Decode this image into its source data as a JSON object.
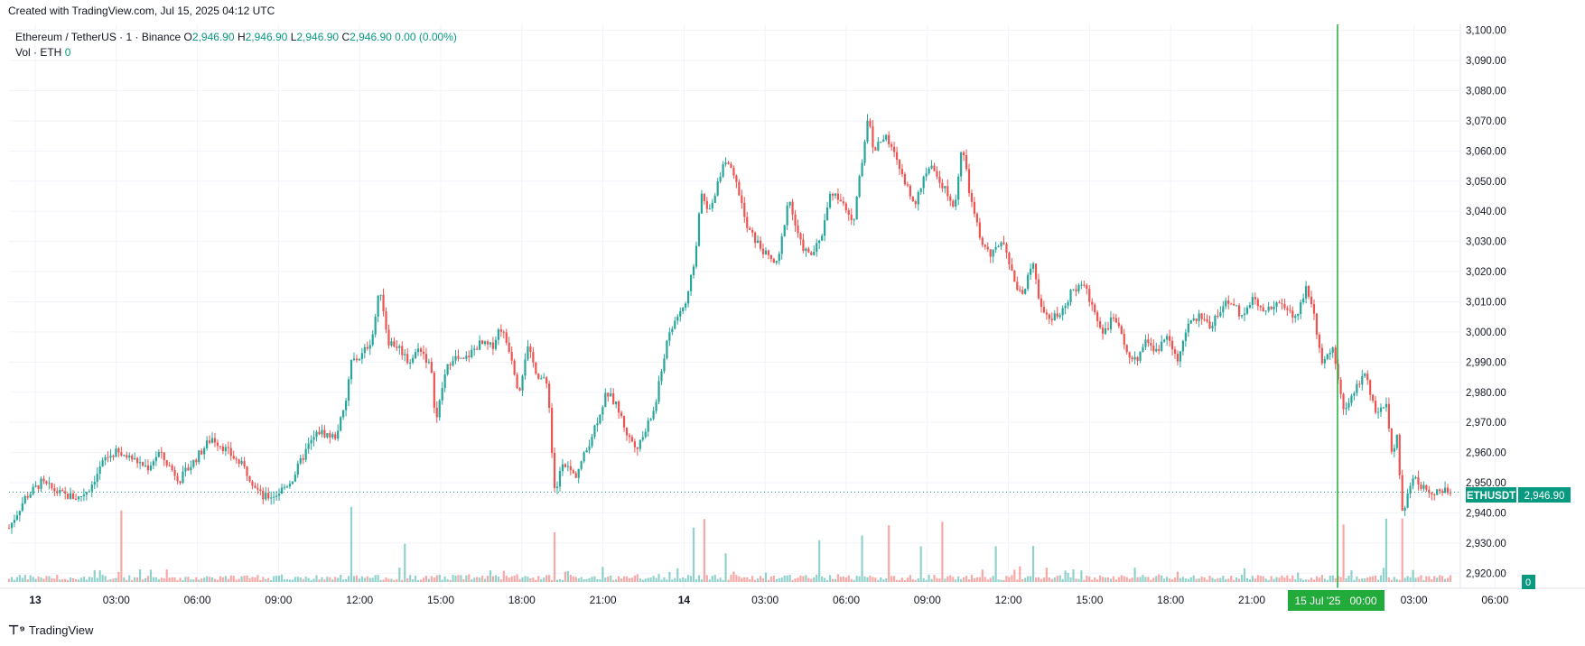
{
  "header": {
    "created": "Created with TradingView.com, Jul 15, 2025 04:12 UTC"
  },
  "legend": {
    "symbol": "Ethereum / TetherUS · 1 · Binance",
    "o_label": "O",
    "o_value": "2,946.90",
    "h_label": "H",
    "h_value": "2,946.90",
    "l_label": "L",
    "l_value": "2,946.90",
    "c_label": "C",
    "c_value": "2,946.90",
    "change": "0.00 (0.00%)",
    "vol_label": "Vol · ETH",
    "vol_value": "0"
  },
  "price_tag": {
    "symbol": "ETHUSDT",
    "price": "2,946.90"
  },
  "volume_tag": "0",
  "crosshair_label": "15 Jul '25   00:00",
  "footer": {
    "brand": "TradingView"
  },
  "colors": {
    "up": "#26a69a",
    "down": "#ef5350",
    "tag": "#089981",
    "crosshair": "#22ab3b",
    "grid": "#f0f3fa"
  },
  "chart_data": {
    "type": "candlestick",
    "symbol": "ETHUSDT",
    "interval": "1 minute",
    "y_axis": {
      "range": [
        2915,
        3102
      ],
      "ticks": [
        "3,100.00",
        "3,090.00",
        "3,080.00",
        "3,070.00",
        "3,060.00",
        "3,050.00",
        "3,040.00",
        "3,030.00",
        "3,020.00",
        "3,010.00",
        "3,000.00",
        "2,990.00",
        "2,980.00",
        "2,970.00",
        "2,960.00",
        "2,950.00",
        "2,940.00",
        "2,930.00",
        "2,920.00"
      ]
    },
    "x_axis": {
      "ticks": [
        "13",
        "03:00",
        "06:00",
        "09:00",
        "12:00",
        "15:00",
        "18:00",
        "21:00",
        "14",
        "03:00",
        "06:00",
        "09:00",
        "12:00",
        "15:00",
        "18:00",
        "21:00",
        "15 Jul '25",
        "03:00",
        "06:00"
      ]
    },
    "last_price": 2946.9,
    "price_path": [
      [
        0,
        2935
      ],
      [
        6,
        2945
      ],
      [
        12,
        2950
      ],
      [
        20,
        2946
      ],
      [
        26,
        2945
      ],
      [
        30,
        2948
      ],
      [
        36,
        2958
      ],
      [
        40,
        2960
      ],
      [
        46,
        2958
      ],
      [
        52,
        2955
      ],
      [
        56,
        2960
      ],
      [
        64,
        2951
      ],
      [
        70,
        2958
      ],
      [
        76,
        2965
      ],
      [
        80,
        2962
      ],
      [
        88,
        2955
      ],
      [
        95,
        2945
      ],
      [
        100,
        2946
      ],
      [
        106,
        2951
      ],
      [
        112,
        2962
      ],
      [
        116,
        2967
      ],
      [
        122,
        2965
      ],
      [
        126,
        2975
      ],
      [
        128,
        2990
      ],
      [
        132,
        2992
      ],
      [
        136,
        2998
      ],
      [
        139,
        3015
      ],
      [
        142,
        2997
      ],
      [
        146,
        2995
      ],
      [
        150,
        2990
      ],
      [
        154,
        2995
      ],
      [
        158,
        2988
      ],
      [
        160,
        2970
      ],
      [
        163,
        2985
      ],
      [
        166,
        2992
      ],
      [
        170,
        2990
      ],
      [
        176,
        2996
      ],
      [
        181,
        2995
      ],
      [
        184,
        3002
      ],
      [
        188,
        2993
      ],
      [
        191,
        2980
      ],
      [
        194,
        2995
      ],
      [
        198,
        2986
      ],
      [
        202,
        2982
      ],
      [
        204,
        2950
      ],
      [
        205,
        2946
      ],
      [
        207,
        2958
      ],
      [
        212,
        2952
      ],
      [
        216,
        2960
      ],
      [
        220,
        2970
      ],
      [
        224,
        2980
      ],
      [
        228,
        2975
      ],
      [
        232,
        2965
      ],
      [
        236,
        2962
      ],
      [
        242,
        2975
      ],
      [
        246,
        2995
      ],
      [
        250,
        3005
      ],
      [
        254,
        3010
      ],
      [
        257,
        3025
      ],
      [
        259,
        3045
      ],
      [
        263,
        3040
      ],
      [
        268,
        3058
      ],
      [
        272,
        3050
      ],
      [
        274,
        3045
      ],
      [
        276,
        3035
      ],
      [
        280,
        3030
      ],
      [
        284,
        3025
      ],
      [
        288,
        3022
      ],
      [
        292,
        3045
      ],
      [
        296,
        3030
      ],
      [
        300,
        3025
      ],
      [
        304,
        3030
      ],
      [
        308,
        3047
      ],
      [
        312,
        3043
      ],
      [
        316,
        3035
      ],
      [
        320,
        3060
      ],
      [
        322,
        3072
      ],
      [
        324,
        3060
      ],
      [
        328,
        3065
      ],
      [
        332,
        3058
      ],
      [
        336,
        3048
      ],
      [
        340,
        3043
      ],
      [
        344,
        3055
      ],
      [
        348,
        3052
      ],
      [
        352,
        3045
      ],
      [
        354,
        3040
      ],
      [
        357,
        3062
      ],
      [
        360,
        3045
      ],
      [
        364,
        3030
      ],
      [
        368,
        3025
      ],
      [
        372,
        3030
      ],
      [
        376,
        3018
      ],
      [
        380,
        3012
      ],
      [
        384,
        3025
      ],
      [
        386,
        3008
      ],
      [
        390,
        3005
      ],
      [
        394,
        3005
      ],
      [
        398,
        3013
      ],
      [
        402,
        3017
      ],
      [
        406,
        3008
      ],
      [
        410,
        3000
      ],
      [
        414,
        3005
      ],
      [
        418,
        2995
      ],
      [
        422,
        2990
      ],
      [
        426,
        2998
      ],
      [
        430,
        2993
      ],
      [
        434,
        3000
      ],
      [
        438,
        2990
      ],
      [
        442,
        3003
      ],
      [
        446,
        3005
      ],
      [
        450,
        3002
      ],
      [
        454,
        3008
      ],
      [
        458,
        3010
      ],
      [
        462,
        3005
      ],
      [
        466,
        3012
      ],
      [
        470,
        3006
      ],
      [
        474,
        3010
      ],
      [
        478,
        3008
      ],
      [
        482,
        3004
      ],
      [
        486,
        3015
      ],
      [
        488,
        3010
      ],
      [
        492,
        2990
      ],
      [
        496,
        2995
      ],
      [
        500,
        2975
      ],
      [
        504,
        2980
      ],
      [
        508,
        2987
      ],
      [
        512,
        2972
      ],
      [
        516,
        2975
      ],
      [
        518,
        2960
      ],
      [
        520,
        2965
      ],
      [
        522,
        2940
      ],
      [
        526,
        2952
      ],
      [
        530,
        2948
      ],
      [
        534,
        2946.9
      ]
    ],
    "time_index_range": [
      0,
      540
    ],
    "volume": {
      "typical": "low",
      "spikes_at": [
        42,
        128,
        148,
        204,
        256,
        260,
        268,
        304,
        320,
        330,
        342,
        350,
        370,
        384,
        500,
        516,
        522
      ]
    }
  }
}
